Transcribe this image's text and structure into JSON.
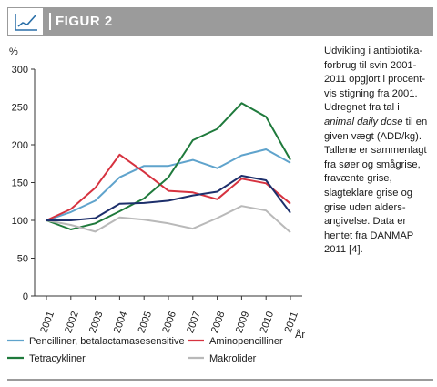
{
  "header": {
    "title": "FIGUR 2",
    "icon": "line-chart-icon"
  },
  "caption": {
    "part1": "Udvikling i antibiotika-forbrug til svin 2001-2011 opgjort i procent-vis stigning fra 2001. Udregnet fra tal i ",
    "emphasis": "animal daily dose",
    "part2": " til en given vægt (ADD/kg). Tallene er sammenlagt fra søer og smågrise, fravænte grise, slagteklare grise og grise uden alders-angivelse. Data er hentet fra DANMAP 2011 [4]."
  },
  "chart_data": {
    "type": "line",
    "ylabel": "%",
    "xlabel": "År",
    "ylim": [
      0,
      300
    ],
    "yticks": [
      "0",
      "50",
      "100",
      "150",
      "200",
      "250",
      "300"
    ],
    "categories": [
      "2001",
      "2002",
      "2003",
      "2004",
      "2005",
      "2006",
      "2007",
      "2008",
      "2009",
      "2010",
      "2011"
    ],
    "grid": false,
    "legend_position": "bottom",
    "series": [
      {
        "name": "Pencilliner, betalactamasesensitive",
        "color": "#5fa3cc",
        "values": [
          100,
          111,
          126,
          157,
          172,
          172,
          180,
          169,
          186,
          194,
          176
        ]
      },
      {
        "name": "Aminopencilliner",
        "color": "#d6323f",
        "values": [
          100,
          115,
          143,
          187,
          164,
          139,
          137,
          128,
          155,
          149,
          122
        ]
      },
      {
        "name": "Tetracykliner",
        "color": "#1f7a3c",
        "values": [
          100,
          88,
          96,
          112,
          129,
          157,
          206,
          221,
          255,
          237,
          180
        ]
      },
      {
        "name": "Makrolider",
        "color": "#b9b9b9",
        "values": [
          100,
          94,
          85,
          104,
          101,
          96,
          89,
          103,
          119,
          113,
          84
        ]
      },
      {
        "name": "",
        "color": "#1d2f6b",
        "values": [
          100,
          100,
          103,
          122,
          123,
          126,
          133,
          138,
          159,
          153,
          110
        ]
      }
    ]
  }
}
